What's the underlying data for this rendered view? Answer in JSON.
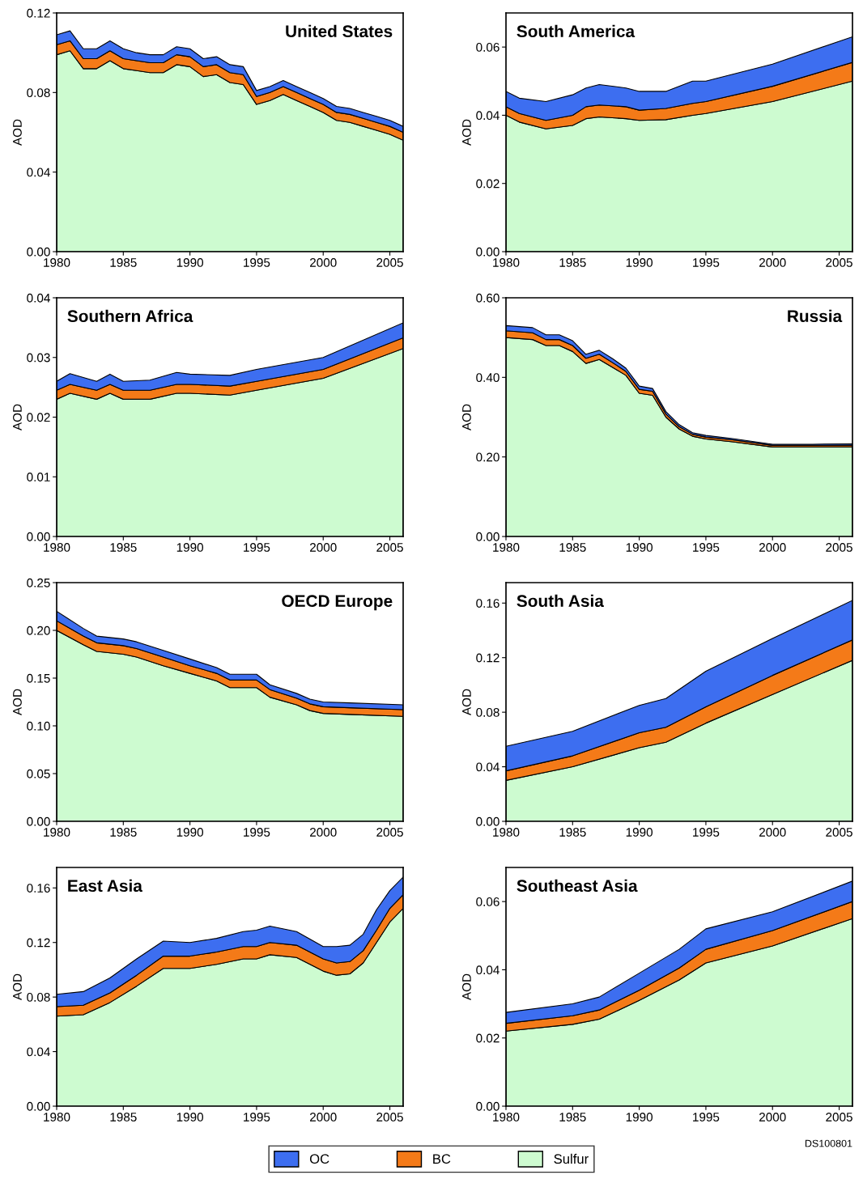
{
  "chart_data": [
    {
      "type": "area",
      "stacked": true,
      "title": "United States",
      "ylabel": "AOD",
      "legend": "bottom",
      "xlim": [
        1980,
        2006
      ],
      "xticks": [
        1980,
        1985,
        1990,
        1995,
        2000,
        2005
      ],
      "ylim": [
        0,
        0.12
      ],
      "yticks": [
        {
          "value": 0,
          "label": "0.00"
        },
        {
          "value": 0.04,
          "label": "0.04"
        },
        {
          "value": 0.08,
          "label": "0.08"
        },
        {
          "value": 0.12,
          "label": "0.12"
        }
      ],
      "x": [
        1980,
        1981,
        1982,
        1983,
        1984,
        1985,
        1986,
        1987,
        1988,
        1989,
        1990,
        1991,
        1992,
        1993,
        1994,
        1995,
        1996,
        1997,
        1998,
        1999,
        2000,
        2001,
        2002,
        2003,
        2004,
        2005,
        2006
      ],
      "series": [
        {
          "name": "Sulfur",
          "color": "#cdfbd0",
          "values": [
            0.099,
            0.101,
            0.092,
            0.092,
            0.096,
            0.092,
            0.091,
            0.09,
            0.09,
            0.094,
            0.093,
            0.088,
            0.089,
            0.085,
            0.084,
            0.074,
            0.076,
            0.079,
            0.076,
            0.073,
            0.07,
            0.066,
            0.065,
            0.063,
            0.061,
            0.059,
            0.056
          ]
        },
        {
          "name": "BC",
          "color": "#f47a18",
          "values": [
            0.005,
            0.005,
            0.005,
            0.005,
            0.005,
            0.005,
            0.005,
            0.005,
            0.005,
            0.005,
            0.005,
            0.005,
            0.005,
            0.005,
            0.005,
            0.004,
            0.004,
            0.004,
            0.004,
            0.004,
            0.004,
            0.004,
            0.004,
            0.004,
            0.004,
            0.004,
            0.004
          ]
        },
        {
          "name": "OC",
          "color": "#3d6ef0",
          "values": [
            0.005,
            0.005,
            0.005,
            0.005,
            0.005,
            0.005,
            0.004,
            0.004,
            0.004,
            0.004,
            0.004,
            0.004,
            0.004,
            0.004,
            0.004,
            0.003,
            0.003,
            0.003,
            0.003,
            0.003,
            0.003,
            0.003,
            0.003,
            0.003,
            0.003,
            0.003,
            0.003
          ]
        }
      ]
    },
    {
      "type": "area",
      "stacked": true,
      "title": "South America",
      "ylabel": "AOD",
      "legend": "bottom",
      "xlim": [
        1980,
        2006
      ],
      "xticks": [
        1980,
        1985,
        1990,
        1995,
        2000,
        2005
      ],
      "ylim": [
        0,
        0.07
      ],
      "yticks": [
        {
          "value": 0,
          "label": "0.00"
        },
        {
          "value": 0.02,
          "label": "0.02"
        },
        {
          "value": 0.04,
          "label": "0.04"
        },
        {
          "value": 0.06,
          "label": "0.06"
        }
      ],
      "x": [
        1980,
        1981,
        1983,
        1985,
        1986,
        1987,
        1989,
        1990,
        1992,
        1994,
        1995,
        2000,
        2006
      ],
      "series": [
        {
          "name": "Sulfur",
          "color": "#cdfbd0",
          "values": [
            0.04,
            0.038,
            0.036,
            0.037,
            0.039,
            0.0395,
            0.039,
            0.0385,
            0.0387,
            0.04,
            0.0405,
            0.044,
            0.05
          ]
        },
        {
          "name": "BC",
          "color": "#f47a18",
          "values": [
            0.0025,
            0.0025,
            0.0025,
            0.003,
            0.0035,
            0.0035,
            0.0035,
            0.003,
            0.0033,
            0.0035,
            0.0035,
            0.0045,
            0.0055
          ]
        },
        {
          "name": "OC",
          "color": "#3d6ef0",
          "values": [
            0.0045,
            0.0045,
            0.0055,
            0.006,
            0.0055,
            0.006,
            0.0055,
            0.0055,
            0.005,
            0.0065,
            0.006,
            0.0065,
            0.0075
          ]
        }
      ]
    },
    {
      "type": "area",
      "stacked": true,
      "title": "Southern Africa",
      "ylabel": "AOD",
      "legend": "bottom",
      "xlim": [
        1980,
        2006
      ],
      "xticks": [
        1980,
        1985,
        1990,
        1995,
        2000,
        2005
      ],
      "ylim": [
        0,
        0.04
      ],
      "yticks": [
        {
          "value": 0,
          "label": "0.00"
        },
        {
          "value": 0.01,
          "label": "0.01"
        },
        {
          "value": 0.02,
          "label": "0.02"
        },
        {
          "value": 0.03,
          "label": "0.03"
        },
        {
          "value": 0.04,
          "label": "0.04"
        }
      ],
      "x": [
        1980,
        1981,
        1983,
        1984,
        1985,
        1987,
        1989,
        1990,
        1993,
        1995,
        2000,
        2006
      ],
      "series": [
        {
          "name": "Sulfur",
          "color": "#cdfbd0",
          "values": [
            0.023,
            0.024,
            0.023,
            0.024,
            0.023,
            0.023,
            0.024,
            0.024,
            0.0237,
            0.0245,
            0.0265,
            0.0315
          ]
        },
        {
          "name": "BC",
          "color": "#f47a18",
          "values": [
            0.0015,
            0.0015,
            0.0015,
            0.0015,
            0.0015,
            0.0015,
            0.0015,
            0.0015,
            0.0015,
            0.0015,
            0.0015,
            0.0018
          ]
        },
        {
          "name": "OC",
          "color": "#3d6ef0",
          "values": [
            0.0015,
            0.0018,
            0.0015,
            0.0017,
            0.0015,
            0.0017,
            0.002,
            0.0017,
            0.0018,
            0.002,
            0.002,
            0.0025
          ]
        }
      ]
    },
    {
      "type": "area",
      "stacked": true,
      "title": "Russia",
      "ylabel": "AOD",
      "legend": "bottom",
      "xlim": [
        1980,
        2006
      ],
      "xticks": [
        1980,
        1985,
        1990,
        1995,
        2000,
        2005
      ],
      "ylim": [
        0,
        0.6
      ],
      "yticks": [
        {
          "value": 0,
          "label": "0.00"
        },
        {
          "value": 0.2,
          "label": "0.20"
        },
        {
          "value": 0.4,
          "label": "0.40"
        },
        {
          "value": 0.6,
          "label": "0.60"
        }
      ],
      "x": [
        1980,
        1982,
        1983,
        1984,
        1985,
        1986,
        1987,
        1988,
        1989,
        1990,
        1991,
        1992,
        1993,
        1994,
        1995,
        1997,
        2000,
        2003,
        2006
      ],
      "series": [
        {
          "name": "Sulfur",
          "color": "#cdfbd0",
          "values": [
            0.5,
            0.495,
            0.48,
            0.48,
            0.465,
            0.435,
            0.445,
            0.425,
            0.405,
            0.36,
            0.355,
            0.3,
            0.27,
            0.252,
            0.245,
            0.238,
            0.225,
            0.225,
            0.225
          ]
        },
        {
          "name": "BC",
          "color": "#f47a18",
          "values": [
            0.017,
            0.017,
            0.015,
            0.015,
            0.015,
            0.013,
            0.013,
            0.012,
            0.01,
            0.01,
            0.01,
            0.008,
            0.006,
            0.005,
            0.005,
            0.005,
            0.004,
            0.004,
            0.004
          ]
        },
        {
          "name": "OC",
          "color": "#3d6ef0",
          "values": [
            0.013,
            0.013,
            0.012,
            0.012,
            0.012,
            0.01,
            0.01,
            0.01,
            0.008,
            0.008,
            0.007,
            0.006,
            0.005,
            0.004,
            0.004,
            0.003,
            0.003,
            0.003,
            0.004
          ]
        }
      ]
    },
    {
      "type": "area",
      "stacked": true,
      "title": "OECD Europe",
      "ylabel": "AOD",
      "legend": "bottom",
      "xlim": [
        1980,
        2006
      ],
      "xticks": [
        1980,
        1985,
        1990,
        1995,
        2000,
        2005
      ],
      "ylim": [
        0,
        0.25
      ],
      "yticks": [
        {
          "value": 0,
          "label": "0.00"
        },
        {
          "value": 0.05,
          "label": "0.05"
        },
        {
          "value": 0.1,
          "label": "0.10"
        },
        {
          "value": 0.15,
          "label": "0.15"
        },
        {
          "value": 0.2,
          "label": "0.20"
        },
        {
          "value": 0.25,
          "label": "0.25"
        }
      ],
      "x": [
        1980,
        1982,
        1983,
        1985,
        1986,
        1988,
        1990,
        1992,
        1993,
        1995,
        1996,
        1998,
        1999,
        2000,
        2002,
        2006
      ],
      "series": [
        {
          "name": "Sulfur",
          "color": "#cdfbd0",
          "values": [
            0.2,
            0.185,
            0.178,
            0.175,
            0.172,
            0.163,
            0.155,
            0.147,
            0.14,
            0.14,
            0.13,
            0.122,
            0.116,
            0.113,
            0.112,
            0.11
          ]
        },
        {
          "name": "BC",
          "color": "#f47a18",
          "values": [
            0.01,
            0.009,
            0.009,
            0.009,
            0.009,
            0.009,
            0.008,
            0.008,
            0.008,
            0.008,
            0.008,
            0.007,
            0.007,
            0.007,
            0.007,
            0.007
          ]
        },
        {
          "name": "OC",
          "color": "#3d6ef0",
          "values": [
            0.01,
            0.008,
            0.007,
            0.007,
            0.007,
            0.007,
            0.007,
            0.006,
            0.006,
            0.006,
            0.005,
            0.005,
            0.005,
            0.005,
            0.005,
            0.005
          ]
        }
      ]
    },
    {
      "type": "area",
      "stacked": true,
      "title": "South Asia",
      "ylabel": "AOD",
      "legend": "bottom",
      "xlim": [
        1980,
        2006
      ],
      "xticks": [
        1980,
        1985,
        1990,
        1995,
        2000,
        2005
      ],
      "ylim": [
        0,
        0.175
      ],
      "yticks": [
        {
          "value": 0,
          "label": "0.00"
        },
        {
          "value": 0.04,
          "label": "0.04"
        },
        {
          "value": 0.08,
          "label": "0.08"
        },
        {
          "value": 0.12,
          "label": "0.12"
        },
        {
          "value": 0.16,
          "label": "0.16"
        }
      ],
      "x": [
        1980,
        1985,
        1990,
        1992,
        1995,
        2000,
        2006
      ],
      "series": [
        {
          "name": "Sulfur",
          "color": "#cdfbd0",
          "values": [
            0.03,
            0.04,
            0.054,
            0.058,
            0.072,
            0.093,
            0.118
          ]
        },
        {
          "name": "BC",
          "color": "#f47a18",
          "values": [
            0.007,
            0.008,
            0.011,
            0.011,
            0.012,
            0.014,
            0.015
          ]
        },
        {
          "name": "OC",
          "color": "#3d6ef0",
          "values": [
            0.018,
            0.018,
            0.02,
            0.021,
            0.026,
            0.027,
            0.029
          ]
        }
      ]
    },
    {
      "type": "area",
      "stacked": true,
      "title": "East Asia",
      "ylabel": "AOD",
      "legend": "bottom",
      "xlim": [
        1980,
        2006
      ],
      "xticks": [
        1980,
        1985,
        1990,
        1995,
        2000,
        2005
      ],
      "ylim": [
        0,
        0.175
      ],
      "yticks": [
        {
          "value": 0,
          "label": "0.00"
        },
        {
          "value": 0.04,
          "label": "0.04"
        },
        {
          "value": 0.08,
          "label": "0.08"
        },
        {
          "value": 0.12,
          "label": "0.12"
        },
        {
          "value": 0.16,
          "label": "0.16"
        }
      ],
      "x": [
        1980,
        1982,
        1984,
        1986,
        1988,
        1990,
        1992,
        1994,
        1995,
        1996,
        1998,
        2000,
        2001,
        2002,
        2003,
        2004,
        2005,
        2006
      ],
      "series": [
        {
          "name": "Sulfur",
          "color": "#cdfbd0",
          "values": [
            0.066,
            0.067,
            0.076,
            0.088,
            0.101,
            0.101,
            0.104,
            0.108,
            0.108,
            0.111,
            0.109,
            0.099,
            0.096,
            0.097,
            0.105,
            0.12,
            0.135,
            0.145
          ]
        },
        {
          "name": "BC",
          "color": "#f47a18",
          "values": [
            0.007,
            0.007,
            0.007,
            0.008,
            0.009,
            0.009,
            0.009,
            0.009,
            0.009,
            0.009,
            0.009,
            0.009,
            0.009,
            0.009,
            0.009,
            0.009,
            0.01,
            0.01
          ]
        },
        {
          "name": "OC",
          "color": "#3d6ef0",
          "values": [
            0.009,
            0.01,
            0.011,
            0.012,
            0.011,
            0.01,
            0.01,
            0.011,
            0.012,
            0.012,
            0.01,
            0.009,
            0.012,
            0.012,
            0.012,
            0.015,
            0.013,
            0.013
          ]
        }
      ]
    },
    {
      "type": "area",
      "stacked": true,
      "title": "Southeast Asia",
      "ylabel": "AOD",
      "legend": "bottom",
      "xlim": [
        1980,
        2006
      ],
      "xticks": [
        1980,
        1985,
        1990,
        1995,
        2000,
        2005
      ],
      "ylim": [
        0,
        0.07
      ],
      "yticks": [
        {
          "value": 0,
          "label": "0.00"
        },
        {
          "value": 0.02,
          "label": "0.02"
        },
        {
          "value": 0.04,
          "label": "0.04"
        },
        {
          "value": 0.06,
          "label": "0.06"
        }
      ],
      "x": [
        1980,
        1985,
        1987,
        1990,
        1993,
        1995,
        2000,
        2006
      ],
      "annotations": [
        "DS100801"
      ],
      "series": [
        {
          "name": "Sulfur",
          "color": "#cdfbd0",
          "values": [
            0.022,
            0.024,
            0.0255,
            0.031,
            0.037,
            0.042,
            0.047,
            0.055
          ]
        },
        {
          "name": "BC",
          "color": "#f47a18",
          "values": [
            0.0023,
            0.0025,
            0.0027,
            0.003,
            0.0035,
            0.004,
            0.0045,
            0.005
          ]
        },
        {
          "name": "OC",
          "color": "#3d6ef0",
          "values": [
            0.0032,
            0.0035,
            0.0038,
            0.005,
            0.0055,
            0.006,
            0.0055,
            0.006
          ]
        }
      ]
    }
  ]
}
